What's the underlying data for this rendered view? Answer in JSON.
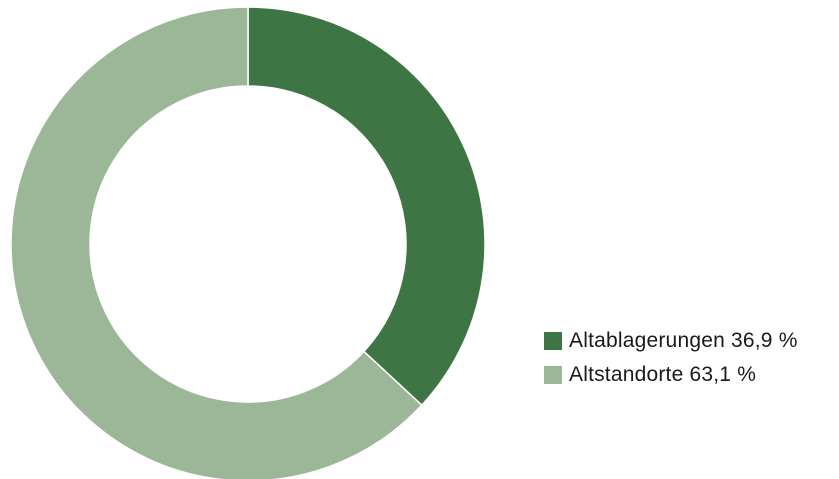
{
  "chart_data": {
    "type": "pie",
    "variant": "donut",
    "title": "",
    "legend_position": "right-bottom",
    "series": [
      {
        "name": "Altablagerungen",
        "value": 36.9,
        "value_label": "36,9 %",
        "color": "#3e7545"
      },
      {
        "name": "Altstandorte",
        "value": 63.1,
        "value_label": "63,1 %",
        "color": "#9bb797"
      }
    ]
  },
  "legend": {
    "items": [
      {
        "label": "Altablagerungen 36,9 %",
        "color": "#3e7545"
      },
      {
        "label": "Altstandorte 63,1 %",
        "color": "#9bb797"
      }
    ]
  }
}
